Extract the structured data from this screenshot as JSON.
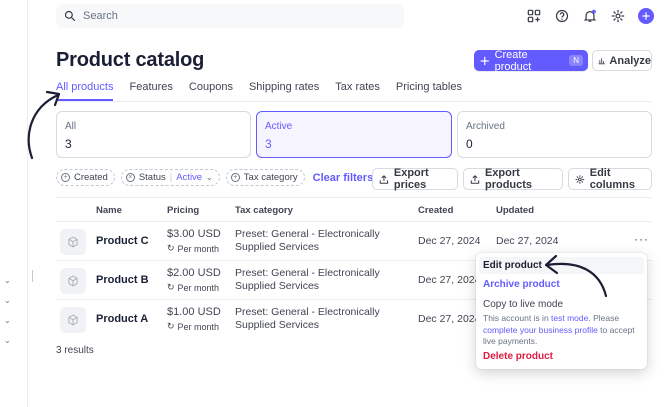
{
  "search": {
    "placeholder": "Search"
  },
  "page": {
    "title": "Product catalog"
  },
  "header": {
    "create_label": "Create product",
    "create_shortcut": "N",
    "analyze_label": "Analyze"
  },
  "tabs": [
    "All products",
    "Features",
    "Coupons",
    "Shipping rates",
    "Tax rates",
    "Pricing tables"
  ],
  "summary": [
    {
      "label": "All",
      "value": "3"
    },
    {
      "label": "Active",
      "value": "3"
    },
    {
      "label": "Archived",
      "value": "0"
    }
  ],
  "filters": {
    "created": "Created",
    "status_label": "Status",
    "status_value": "Active",
    "tax": "Tax category",
    "clear": "Clear filters"
  },
  "actions": {
    "export_prices": "Export prices",
    "export_products": "Export products",
    "edit_columns": "Edit columns"
  },
  "table": {
    "columns": [
      "Name",
      "Pricing",
      "Tax category",
      "Created",
      "Updated"
    ],
    "rows": [
      {
        "name": "Product C",
        "price": "$3.00 USD",
        "period": "Per month",
        "tax1": "Preset: General - Electronically",
        "tax2": "Supplied Services",
        "created": "Dec 27, 2024",
        "updated": "Dec 27, 2024"
      },
      {
        "name": "Product B",
        "price": "$2.00 USD",
        "period": "Per month",
        "tax1": "Preset: General - Electronically",
        "tax2": "Supplied Services",
        "created": "Dec 27, 2024",
        "updated": ""
      },
      {
        "name": "Product A",
        "price": "$1.00 USD",
        "period": "Per month",
        "tax1": "Preset: General - Electronically",
        "tax2": "Supplied Services",
        "created": "Dec 27, 2024",
        "updated": ""
      }
    ],
    "results": "3 results"
  },
  "menu": {
    "edit": "Edit product",
    "archive": "Archive product",
    "copy": "Copy to live mode",
    "desc_a": "This account is in ",
    "desc_link1": "test mode",
    "desc_b": ". Please ",
    "desc_link2": "complete your business profile",
    "desc_c": " to accept live payments.",
    "delete": "Delete product"
  },
  "colors": {
    "accent": "#635bff",
    "danger": "#df1b41",
    "text": "#1a1f36"
  }
}
